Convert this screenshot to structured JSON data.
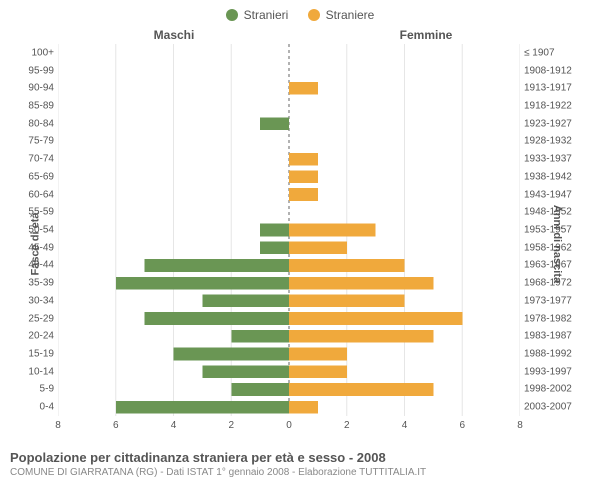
{
  "legend": {
    "male": {
      "label": "Stranieri",
      "color": "#6a9654"
    },
    "female": {
      "label": "Straniere",
      "color": "#f0a93c"
    }
  },
  "column_headers": {
    "left": "Maschi",
    "right": "Femmine"
  },
  "axis_titles": {
    "left": "Fasce di età",
    "right": "Anni di nascita"
  },
  "chart": {
    "type": "pyramid-bar",
    "x_max": 8,
    "x_ticks": [
      8,
      6,
      4,
      2,
      0,
      2,
      4,
      6,
      8
    ],
    "grid_color": "#e6e6e6",
    "center_line_color": "#666666",
    "background_color": "#ffffff",
    "bar_height_ratio": 0.72,
    "label_fontsize": 10,
    "tick_fontsize": 10,
    "title_fontsize": 11,
    "rows": [
      {
        "age": "100+",
        "birth": "≤ 1907",
        "m": 0,
        "f": 0
      },
      {
        "age": "95-99",
        "birth": "1908-1912",
        "m": 0,
        "f": 0
      },
      {
        "age": "90-94",
        "birth": "1913-1917",
        "m": 0,
        "f": 1
      },
      {
        "age": "85-89",
        "birth": "1918-1922",
        "m": 0,
        "f": 0
      },
      {
        "age": "80-84",
        "birth": "1923-1927",
        "m": 1,
        "f": 0
      },
      {
        "age": "75-79",
        "birth": "1928-1932",
        "m": 0,
        "f": 0
      },
      {
        "age": "70-74",
        "birth": "1933-1937",
        "m": 0,
        "f": 1
      },
      {
        "age": "65-69",
        "birth": "1938-1942",
        "m": 0,
        "f": 1
      },
      {
        "age": "60-64",
        "birth": "1943-1947",
        "m": 0,
        "f": 1
      },
      {
        "age": "55-59",
        "birth": "1948-1952",
        "m": 0,
        "f": 0
      },
      {
        "age": "50-54",
        "birth": "1953-1957",
        "m": 1,
        "f": 3
      },
      {
        "age": "45-49",
        "birth": "1958-1962",
        "m": 1,
        "f": 2
      },
      {
        "age": "40-44",
        "birth": "1963-1967",
        "m": 5,
        "f": 4
      },
      {
        "age": "35-39",
        "birth": "1968-1972",
        "m": 6,
        "f": 5
      },
      {
        "age": "30-34",
        "birth": "1973-1977",
        "m": 3,
        "f": 4
      },
      {
        "age": "25-29",
        "birth": "1978-1982",
        "m": 5,
        "f": 6
      },
      {
        "age": "20-24",
        "birth": "1983-1987",
        "m": 2,
        "f": 5
      },
      {
        "age": "15-19",
        "birth": "1988-1992",
        "m": 4,
        "f": 2
      },
      {
        "age": "10-14",
        "birth": "1993-1997",
        "m": 3,
        "f": 2
      },
      {
        "age": "5-9",
        "birth": "1998-2002",
        "m": 2,
        "f": 5
      },
      {
        "age": "0-4",
        "birth": "2003-2007",
        "m": 6,
        "f": 1
      }
    ]
  },
  "footer": {
    "title": "Popolazione per cittadinanza straniera per età e sesso - 2008",
    "subtitle": "COMUNE DI GIARRATANA (RG) - Dati ISTAT 1° gennaio 2008 - Elaborazione TUTTITALIA.IT"
  }
}
